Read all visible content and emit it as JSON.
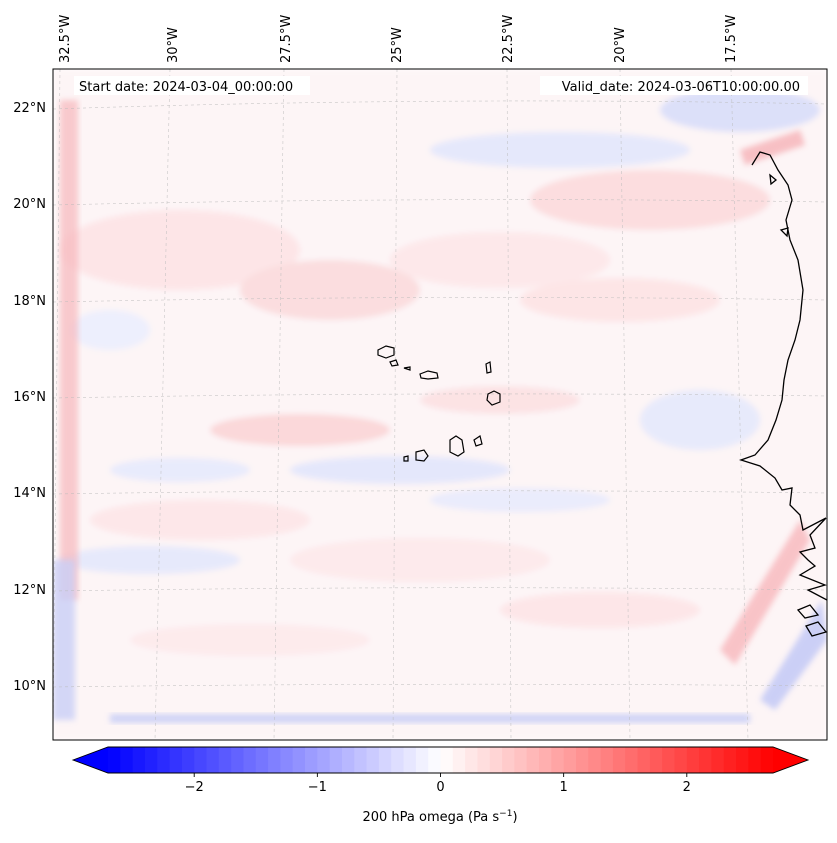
{
  "map": {
    "projection": "Lambert conformal (regional)",
    "extent": {
      "lon_min": -33.0,
      "lon_max": -15.7,
      "lat_min": 8.9,
      "lat_max": 22.7
    },
    "start_label": "Start date: 2024-03-04_00:00:00",
    "valid_label": "Valid_date: 2024-03-06T10:00:00.00",
    "lon_ticks": [
      {
        "label": "32.5°W"
      },
      {
        "label": "30°W"
      },
      {
        "label": "27.5°W"
      },
      {
        "label": "25°W"
      },
      {
        "label": "22.5°W"
      },
      {
        "label": "20°W"
      },
      {
        "label": "17.5°W"
      }
    ],
    "lat_ticks": [
      {
        "label": "22°N"
      },
      {
        "label": "20°N"
      },
      {
        "label": "18°N"
      },
      {
        "label": "16°N"
      },
      {
        "label": "14°N"
      },
      {
        "label": "12°N"
      },
      {
        "label": "10°N"
      }
    ],
    "features": {
      "coastline": "West African coast (Mauritania, Senegal, Gambia, Guinea-Bissau)",
      "islands": "Cape Verde archipelago"
    },
    "colors": {
      "positive": "#ff0000",
      "negative": "#0000ff",
      "neutral": "#ffffff",
      "coast": "#000000"
    }
  },
  "colorbar": {
    "variable": "200 hPa omega",
    "label_main": "200 hPa omega (Pa s",
    "label_exp": "−1",
    "label_tail": ")",
    "vmin": -2.7,
    "vmax": 2.7,
    "ticks": [
      {
        "value": -2,
        "label": "−2"
      },
      {
        "value": -1,
        "label": "−1"
      },
      {
        "value": 0,
        "label": "0"
      },
      {
        "value": 1,
        "label": "1"
      },
      {
        "value": 2,
        "label": "2"
      }
    ]
  }
}
